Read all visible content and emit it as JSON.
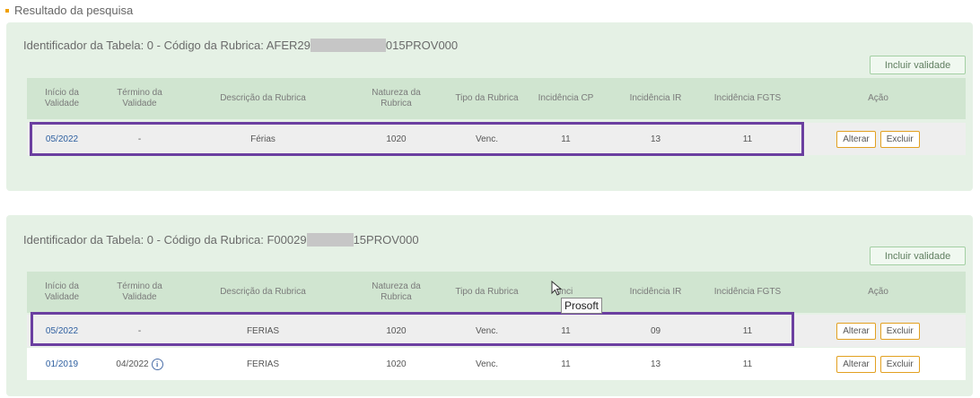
{
  "section_title": "Resultado da pesquisa",
  "columns": {
    "inicio_l1": "Início da",
    "inicio_l2": "Validade",
    "termino_l1": "Término da",
    "termino_l2": "Validade",
    "descricao": "Descrição da Rubrica",
    "natureza_l1": "Natureza da",
    "natureza_l2": "Rubrica",
    "tipo": "Tipo da Rubrica",
    "cp": "Incidência CP",
    "ir": "Incidência IR",
    "fgts": "Incidência FGTS",
    "acao": "Ação"
  },
  "buttons": {
    "incluir": "Incluir validade",
    "alterar": "Alterar",
    "excluir": "Excluir"
  },
  "tooltip": "Prosoft",
  "cards": [
    {
      "header_prefix": "Identificador da Tabela: 0 - Código da Rubrica: AFER29",
      "header_suffix": "015PROV000",
      "rows": [
        {
          "inicio": "05/2022",
          "termino": "-",
          "descricao": "Férias",
          "natureza": "1020",
          "tipo": "Venc.",
          "cp": "11",
          "ir": "13",
          "fgts": "11"
        }
      ]
    },
    {
      "header_prefix": "Identificador da Tabela: 0 - Código da Rubrica: F00029",
      "header_suffix": "15PROV000",
      "cp_header_visible": "Inci",
      "rows": [
        {
          "inicio": "05/2022",
          "termino": "-",
          "descricao": "FERIAS",
          "natureza": "1020",
          "tipo": "Venc.",
          "cp": "11",
          "ir": "09",
          "fgts": "11"
        },
        {
          "inicio": "01/2019",
          "termino": "04/2022",
          "descricao": "FERIAS",
          "natureza": "1020",
          "tipo": "Venc.",
          "cp": "11",
          "ir": "13",
          "fgts": "11"
        }
      ]
    }
  ]
}
